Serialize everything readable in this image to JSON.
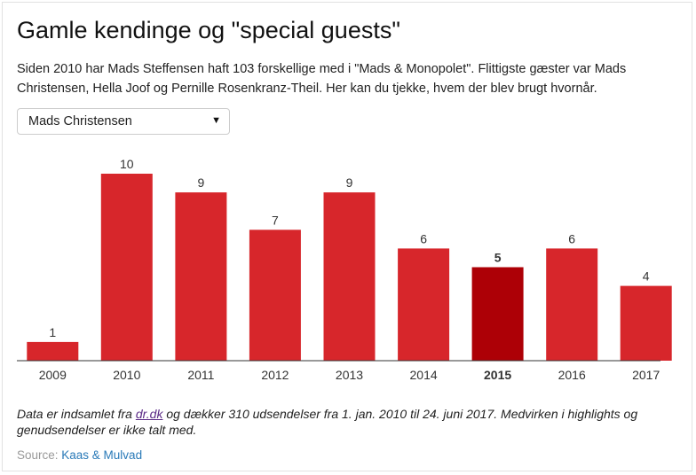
{
  "title": "Gamle kendinge og \"special guests\"",
  "lede": "Siden 2010 har Mads Steffensen haft 103 forskellige med i \"Mads & Monopolet\". Flittigste gæster var Mads Christensen, Hella Joof og Pernille Rosenkranz-Theil. Her kan du tjekke, hvem der blev brugt hvornår.",
  "selector": {
    "value": "Mads Christensen",
    "arrow_icon": "caret-down-icon"
  },
  "colors": {
    "bar": "#d7262b",
    "highlight": "#ad0006",
    "axis": "#333333"
  },
  "chart_data": {
    "type": "bar",
    "categories": [
      "2009",
      "2010",
      "2011",
      "2012",
      "2013",
      "2014",
      "2015",
      "2016",
      "2017"
    ],
    "values": [
      1,
      10,
      9,
      7,
      9,
      6,
      5,
      6,
      4
    ],
    "highlight_category": "2015",
    "data_labels": true,
    "title": "",
    "xlabel": "",
    "ylabel": "",
    "ylim": [
      0,
      10
    ],
    "grid": false,
    "legend": "none"
  },
  "note": {
    "prefix": "Data er indsamlet fra ",
    "link_text": "dr.dk",
    "suffix": " og dækker 310 udsendelser fra 1. jan. 2010 til 24. juni 2017. Medvirken i highlights og genudsendelser er ikke talt med."
  },
  "source": {
    "label": "Source: ",
    "link_text": "Kaas & Mulvad"
  }
}
